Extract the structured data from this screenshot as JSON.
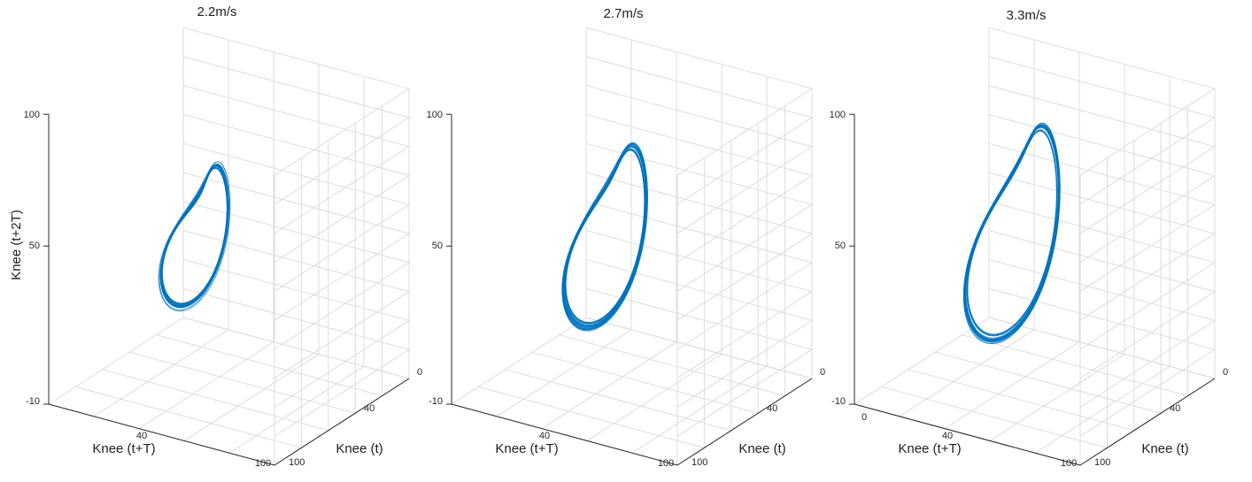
{
  "chart_data": [
    {
      "type": "line",
      "plot_kind": "3d-phase-portrait",
      "title": "2.2m/s",
      "xlabel": "Knee (t+T)",
      "ylabel": "Knee (t)",
      "zlabel": "Knee (t+2T)",
      "x_ticks": [
        "40",
        "100"
      ],
      "y_ticks": [
        "0",
        "40",
        "100"
      ],
      "z_ticks": [
        "100",
        "50",
        "-10"
      ],
      "zlim": [
        -10,
        100
      ],
      "grid": true,
      "series_color": "#0072bd",
      "loops": [
        {
          "center": [
            45,
            35,
            55
          ],
          "radius": 26,
          "tilt": 0.7,
          "phase": 0.3
        },
        {
          "center": [
            38,
            38,
            48
          ],
          "radius": 14,
          "tilt": 0.3,
          "phase": 1.9
        }
      ],
      "cycles": 22
    },
    {
      "type": "line",
      "plot_kind": "3d-phase-portrait",
      "title": "2.7m/s",
      "xlabel": "Knee (t+T)",
      "ylabel": "Knee (t)",
      "zlabel": "",
      "x_ticks": [
        "40",
        "100"
      ],
      "y_ticks": [
        "0",
        "40",
        "100"
      ],
      "z_ticks": [
        "100",
        "50",
        "-10"
      ],
      "zlim": [
        -10,
        100
      ],
      "grid": true,
      "series_color": "#0072bd",
      "loops": [
        {
          "center": [
            48,
            36,
            56
          ],
          "radius": 32,
          "tilt": 0.75,
          "phase": 0.3
        },
        {
          "center": [
            40,
            40,
            46
          ],
          "radius": 16,
          "tilt": 0.3,
          "phase": 1.9
        }
      ],
      "cycles": 22
    },
    {
      "type": "line",
      "plot_kind": "3d-phase-portrait",
      "title": "3.3m/s",
      "xlabel": "Knee (t+T)",
      "ylabel": "Knee (t)",
      "zlabel": "",
      "x_ticks": [
        "0",
        "40",
        "100"
      ],
      "y_ticks": [
        "0",
        "40",
        "100"
      ],
      "z_ticks": [
        "100",
        "50",
        "-10"
      ],
      "zlim": [
        -10,
        100
      ],
      "grid": true,
      "series_color": "#0072bd",
      "loops": [
        {
          "center": [
            50,
            36,
            58
          ],
          "radius": 36,
          "tilt": 0.8,
          "phase": 0.3
        },
        {
          "center": [
            40,
            40,
            48
          ],
          "radius": 18,
          "tilt": 0.3,
          "phase": 1.9
        }
      ],
      "cycles": 22
    }
  ]
}
